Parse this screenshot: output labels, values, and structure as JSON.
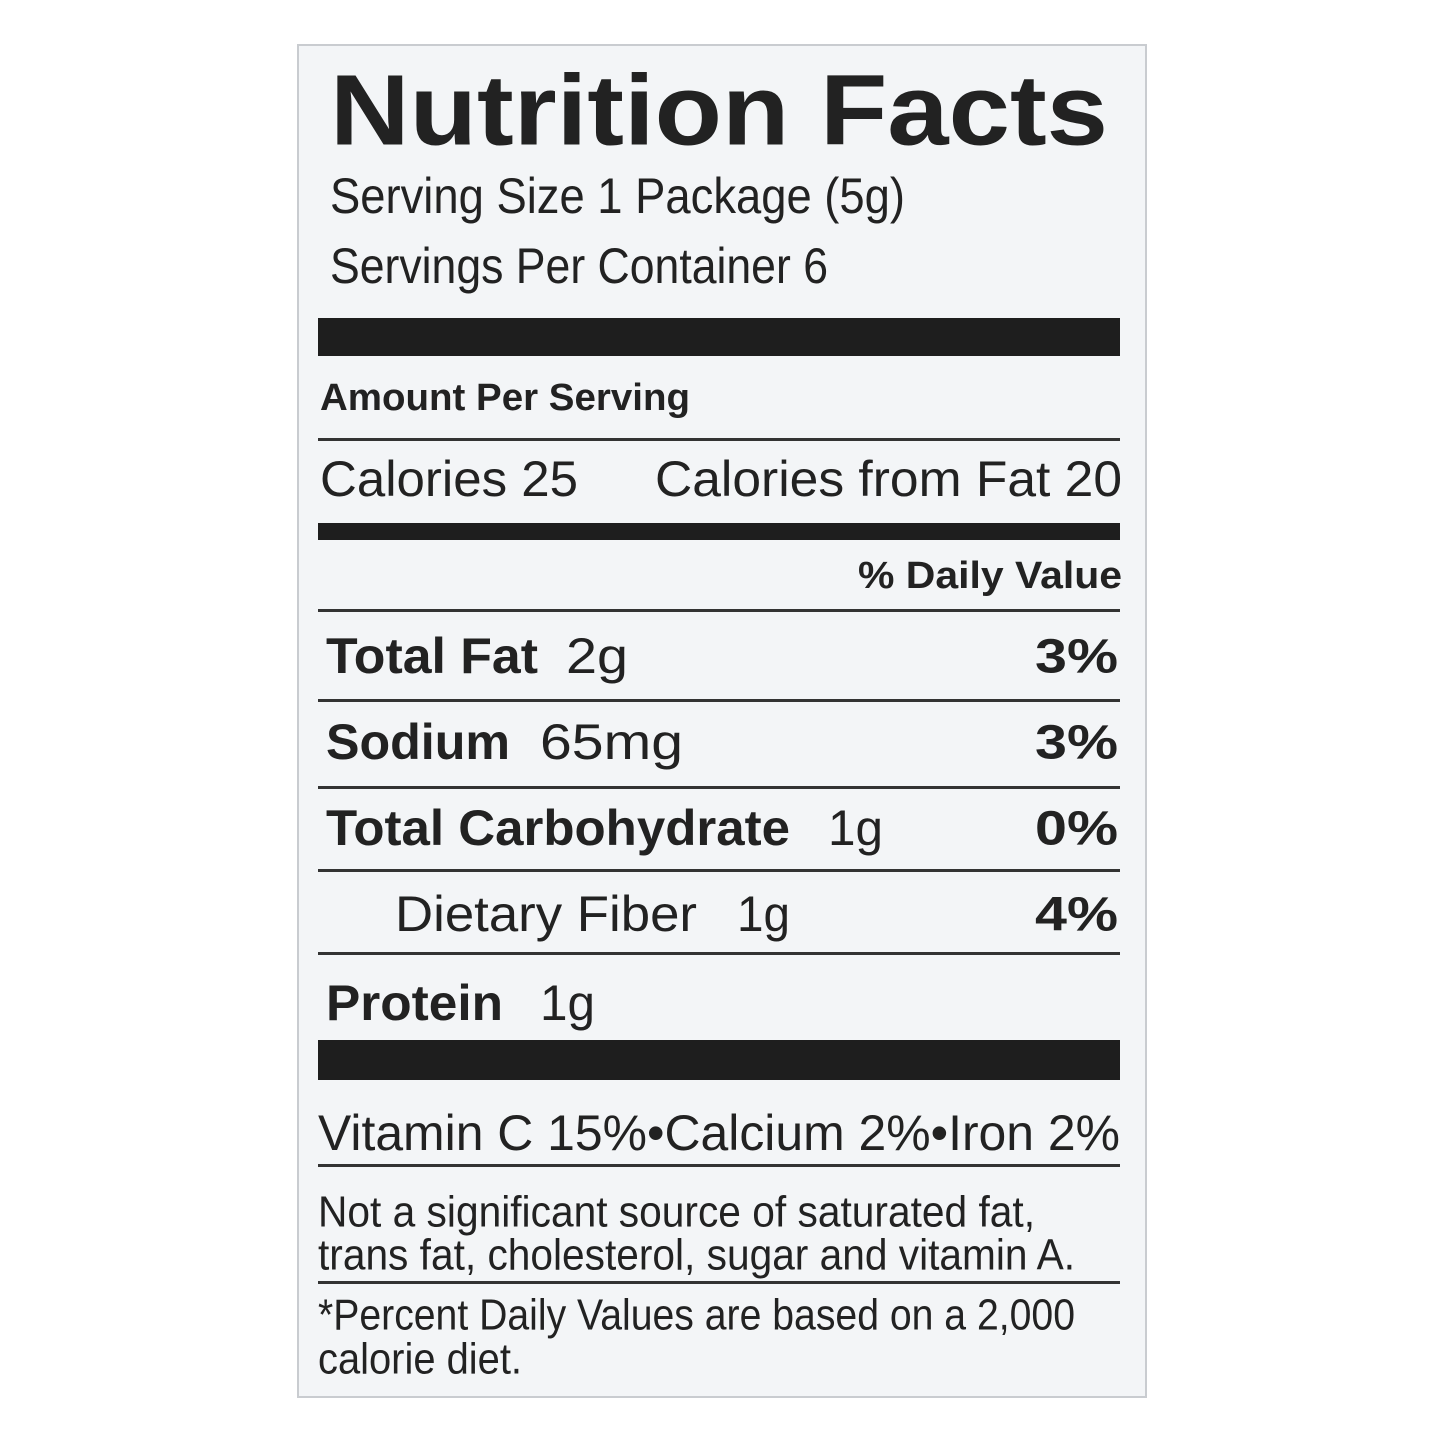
{
  "title": "Nutrition Facts",
  "serving_size": "Serving Size 1 Package (5g)",
  "servings_per_container": "Servings Per Container 6",
  "amount_per_serving": "Amount Per Serving",
  "calories": "Calories 25",
  "calories_from_fat": "Calories from Fat 20",
  "daily_value_header": "% Daily Value",
  "nutrients": [
    {
      "name": "Total Fat",
      "amount": "2g",
      "dv": "3%"
    },
    {
      "name": "Sodium",
      "amount": "65mg",
      "dv": "3%"
    },
    {
      "name": "Total Carbohydrate",
      "amount": "1g",
      "dv": "0%"
    },
    {
      "name": "Dietary Fiber",
      "amount": "1g",
      "dv": "4%"
    },
    {
      "name": "Protein",
      "amount": "1g"
    }
  ],
  "vitamins": "Vitamin C 15%•Calcium 2%•Iron 2%",
  "note": [
    "Not a significant source of saturated fat,",
    "trans fat, cholesterol, sugar and vitamin A."
  ],
  "footnote": [
    "*Percent Daily Values are based on a 2,000",
    "calorie diet."
  ]
}
